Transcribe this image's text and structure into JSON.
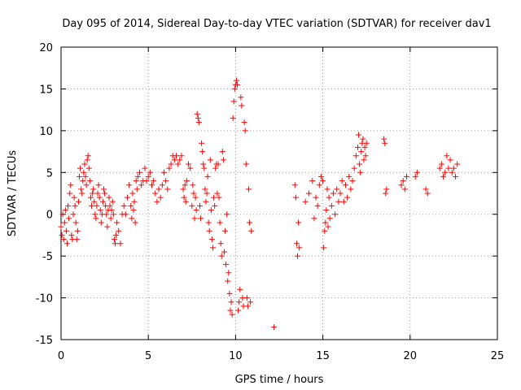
{
  "chart_data": {
    "type": "scatter",
    "title": "Day 095 of 2014, Sidereal Day-to-day VTEC variation (SDTVAR) for receiver dav1",
    "xlabel": "GPS time / hours",
    "ylabel": "SDTVAR / TECUs",
    "xlim": [
      0,
      25
    ],
    "ylim": [
      -15,
      20
    ],
    "xticks": [
      0,
      5,
      10,
      15,
      20,
      25
    ],
    "yticks": [
      -15,
      -10,
      -5,
      0,
      5,
      10,
      15,
      20
    ],
    "grid": true,
    "marker": "+",
    "color": "#ff0000",
    "series": [
      {
        "name": "dav1",
        "points": [
          [
            0.0,
            -1.5
          ],
          [
            0.05,
            -2.5
          ],
          [
            0.1,
            0.0
          ],
          [
            0.15,
            -3.0
          ],
          [
            0.2,
            -1.0
          ],
          [
            0.25,
            0.5
          ],
          [
            0.3,
            -2.0
          ],
          [
            0.35,
            -3.5
          ],
          [
            0.4,
            1.0
          ],
          [
            0.45,
            -0.5
          ],
          [
            0.5,
            2.5
          ],
          [
            0.55,
            3.5
          ],
          [
            0.6,
            -2.5
          ],
          [
            0.65,
            -3.0
          ],
          [
            0.7,
            0.0
          ],
          [
            0.75,
            2.0
          ],
          [
            0.8,
            1.0
          ],
          [
            0.85,
            -1.0
          ],
          [
            0.9,
            -3.0
          ],
          [
            0.95,
            -2.0
          ],
          [
            1.0,
            1.5
          ],
          [
            1.05,
            4.5
          ],
          [
            1.1,
            5.5
          ],
          [
            1.15,
            3.0
          ],
          [
            1.2,
            2.5
          ],
          [
            1.25,
            4.0
          ],
          [
            1.3,
            5.0
          ],
          [
            1.35,
            6.0
          ],
          [
            1.4,
            4.5
          ],
          [
            1.45,
            3.5
          ],
          [
            1.5,
            6.5
          ],
          [
            1.55,
            7.0
          ],
          [
            1.6,
            5.5
          ],
          [
            1.65,
            4.0
          ],
          [
            1.7,
            2.0
          ],
          [
            1.75,
            1.0
          ],
          [
            1.8,
            2.5
          ],
          [
            1.85,
            3.0
          ],
          [
            1.9,
            1.5
          ],
          [
            1.95,
            0.0
          ],
          [
            2.0,
            -0.5
          ],
          [
            2.05,
            1.0
          ],
          [
            2.1,
            2.5
          ],
          [
            2.15,
            3.5
          ],
          [
            2.2,
            2.0
          ],
          [
            2.25,
            0.5
          ],
          [
            2.3,
            -1.0
          ],
          [
            2.35,
            0.0
          ],
          [
            2.4,
            1.5
          ],
          [
            2.45,
            3.0
          ],
          [
            2.5,
            2.5
          ],
          [
            2.55,
            1.0
          ],
          [
            2.6,
            0.0
          ],
          [
            2.65,
            -1.5
          ],
          [
            2.7,
            0.5
          ],
          [
            2.75,
            2.0
          ],
          [
            2.8,
            1.0
          ],
          [
            2.85,
            -0.5
          ],
          [
            2.9,
            0.5
          ],
          [
            2.95,
            1.5
          ],
          [
            3.0,
            0.0
          ],
          [
            3.05,
            -3.0
          ],
          [
            3.1,
            -3.5
          ],
          [
            3.15,
            -2.5
          ],
          [
            3.2,
            -1.0
          ],
          [
            3.3,
            -2.0
          ],
          [
            3.4,
            -3.5
          ],
          [
            3.5,
            0.0
          ],
          [
            3.6,
            1.0
          ],
          [
            3.7,
            0.0
          ],
          [
            3.8,
            2.0
          ],
          [
            3.9,
            3.5
          ],
          [
            4.0,
            1.0
          ],
          [
            4.05,
            -0.5
          ],
          [
            4.1,
            2.5
          ],
          [
            4.15,
            0.5
          ],
          [
            4.2,
            1.5
          ],
          [
            4.25,
            -1.0
          ],
          [
            4.3,
            4.0
          ],
          [
            4.35,
            3.0
          ],
          [
            4.4,
            4.5
          ],
          [
            4.5,
            5.0
          ],
          [
            4.6,
            3.5
          ],
          [
            4.7,
            4.0
          ],
          [
            4.8,
            5.5
          ],
          [
            4.9,
            4.0
          ],
          [
            5.0,
            4.5
          ],
          [
            5.1,
            5.0
          ],
          [
            5.2,
            3.5
          ],
          [
            5.3,
            4.0
          ],
          [
            5.4,
            2.5
          ],
          [
            5.5,
            1.5
          ],
          [
            5.6,
            3.0
          ],
          [
            5.7,
            2.0
          ],
          [
            5.8,
            3.5
          ],
          [
            5.9,
            5.0
          ],
          [
            6.0,
            4.0
          ],
          [
            6.1,
            3.0
          ],
          [
            6.2,
            5.5
          ],
          [
            6.3,
            6.0
          ],
          [
            6.4,
            7.0
          ],
          [
            6.5,
            6.5
          ],
          [
            6.6,
            7.0
          ],
          [
            6.7,
            6.0
          ],
          [
            6.8,
            6.5
          ],
          [
            6.9,
            7.0
          ],
          [
            7.0,
            3.0
          ],
          [
            7.05,
            2.0
          ],
          [
            7.1,
            3.5
          ],
          [
            7.15,
            1.5
          ],
          [
            7.2,
            4.0
          ],
          [
            7.3,
            6.0
          ],
          [
            7.4,
            5.5
          ],
          [
            7.5,
            1.0
          ],
          [
            7.55,
            3.5
          ],
          [
            7.6,
            2.5
          ],
          [
            7.65,
            -0.5
          ],
          [
            7.7,
            2.0
          ],
          [
            7.75,
            0.5
          ],
          [
            7.8,
            12.0
          ],
          [
            7.85,
            11.5
          ],
          [
            7.9,
            11.0
          ],
          [
            7.95,
            1.0
          ],
          [
            8.0,
            -0.5
          ],
          [
            8.05,
            8.5
          ],
          [
            8.1,
            7.5
          ],
          [
            8.15,
            6.0
          ],
          [
            8.2,
            5.5
          ],
          [
            8.25,
            3.0
          ],
          [
            8.3,
            1.5
          ],
          [
            8.35,
            2.5
          ],
          [
            8.4,
            4.5
          ],
          [
            8.45,
            -1.0
          ],
          [
            8.5,
            -2.0
          ],
          [
            8.55,
            6.5
          ],
          [
            8.6,
            0.5
          ],
          [
            8.65,
            -3.0
          ],
          [
            8.7,
            -4.0
          ],
          [
            8.75,
            2.0
          ],
          [
            8.8,
            1.0
          ],
          [
            8.85,
            5.5
          ],
          [
            8.9,
            6.0
          ],
          [
            8.95,
            2.5
          ],
          [
            9.0,
            6.0
          ],
          [
            9.05,
            2.0
          ],
          [
            9.1,
            -1.0
          ],
          [
            9.15,
            -3.5
          ],
          [
            9.2,
            -5.0
          ],
          [
            9.25,
            7.5
          ],
          [
            9.3,
            6.5
          ],
          [
            9.35,
            -4.5
          ],
          [
            9.4,
            -2.0
          ],
          [
            9.45,
            -6.0
          ],
          [
            9.5,
            0.0
          ],
          [
            9.55,
            -8.0
          ],
          [
            9.6,
            -7.0
          ],
          [
            9.65,
            -9.5
          ],
          [
            9.7,
            -11.5
          ],
          [
            9.75,
            -10.5
          ],
          [
            9.8,
            -12.0
          ],
          [
            9.85,
            11.5
          ],
          [
            9.9,
            13.5
          ],
          [
            9.95,
            15.0
          ],
          [
            10.0,
            15.5
          ],
          [
            10.05,
            16.0
          ],
          [
            10.1,
            15.5
          ],
          [
            10.15,
            -11.5
          ],
          [
            10.2,
            -10.5
          ],
          [
            10.25,
            -9.0
          ],
          [
            10.3,
            14.0
          ],
          [
            10.35,
            13.0
          ],
          [
            10.4,
            -10.0
          ],
          [
            10.45,
            -11.0
          ],
          [
            10.5,
            11.0
          ],
          [
            10.55,
            10.0
          ],
          [
            10.6,
            6.0
          ],
          [
            10.65,
            -10.0
          ],
          [
            10.7,
            -11.0
          ],
          [
            10.75,
            3.0
          ],
          [
            10.8,
            -1.0
          ],
          [
            10.85,
            -10.5
          ],
          [
            10.9,
            -2.0
          ],
          [
            12.2,
            -13.5
          ],
          [
            13.4,
            3.5
          ],
          [
            13.45,
            2.0
          ],
          [
            13.5,
            -3.5
          ],
          [
            13.55,
            -5.0
          ],
          [
            13.6,
            -1.0
          ],
          [
            13.65,
            -4.0
          ],
          [
            14.0,
            1.5
          ],
          [
            14.2,
            2.5
          ],
          [
            14.4,
            4.0
          ],
          [
            14.5,
            -0.5
          ],
          [
            14.6,
            2.0
          ],
          [
            14.7,
            1.0
          ],
          [
            14.8,
            3.5
          ],
          [
            14.9,
            4.5
          ],
          [
            15.0,
            4.0
          ],
          [
            15.05,
            -4.0
          ],
          [
            15.1,
            -2.0
          ],
          [
            15.15,
            -1.0
          ],
          [
            15.2,
            0.5
          ],
          [
            15.25,
            3.0
          ],
          [
            15.3,
            -1.5
          ],
          [
            15.35,
            2.0
          ],
          [
            15.4,
            -0.5
          ],
          [
            15.5,
            1.0
          ],
          [
            15.6,
            2.5
          ],
          [
            15.7,
            0.0
          ],
          [
            15.8,
            3.0
          ],
          [
            15.9,
            1.5
          ],
          [
            16.0,
            2.5
          ],
          [
            16.1,
            4.0
          ],
          [
            16.2,
            1.5
          ],
          [
            16.3,
            3.5
          ],
          [
            16.4,
            2.0
          ],
          [
            16.5,
            4.5
          ],
          [
            16.6,
            3.0
          ],
          [
            16.7,
            4.0
          ],
          [
            16.8,
            5.5
          ],
          [
            16.9,
            7.0
          ],
          [
            17.0,
            8.0
          ],
          [
            17.05,
            9.5
          ],
          [
            17.1,
            6.0
          ],
          [
            17.15,
            5.0
          ],
          [
            17.2,
            7.5
          ],
          [
            17.25,
            8.5
          ],
          [
            17.3,
            9.0
          ],
          [
            17.35,
            6.5
          ],
          [
            17.4,
            8.0
          ],
          [
            17.45,
            7.0
          ],
          [
            17.5,
            8.5
          ],
          [
            18.5,
            9.0
          ],
          [
            18.55,
            8.5
          ],
          [
            18.6,
            2.5
          ],
          [
            18.65,
            3.0
          ],
          [
            19.5,
            3.5
          ],
          [
            19.6,
            4.0
          ],
          [
            19.7,
            3.0
          ],
          [
            19.8,
            4.5
          ],
          [
            20.3,
            4.5
          ],
          [
            20.4,
            5.0
          ],
          [
            20.9,
            3.0
          ],
          [
            21.0,
            2.5
          ],
          [
            21.7,
            5.5
          ],
          [
            21.8,
            6.0
          ],
          [
            21.9,
            4.5
          ],
          [
            22.0,
            5.0
          ],
          [
            22.1,
            7.0
          ],
          [
            22.2,
            5.5
          ],
          [
            22.3,
            6.5
          ],
          [
            22.4,
            5.0
          ],
          [
            22.5,
            5.5
          ],
          [
            22.6,
            4.5
          ],
          [
            22.7,
            6.0
          ]
        ]
      }
    ]
  }
}
